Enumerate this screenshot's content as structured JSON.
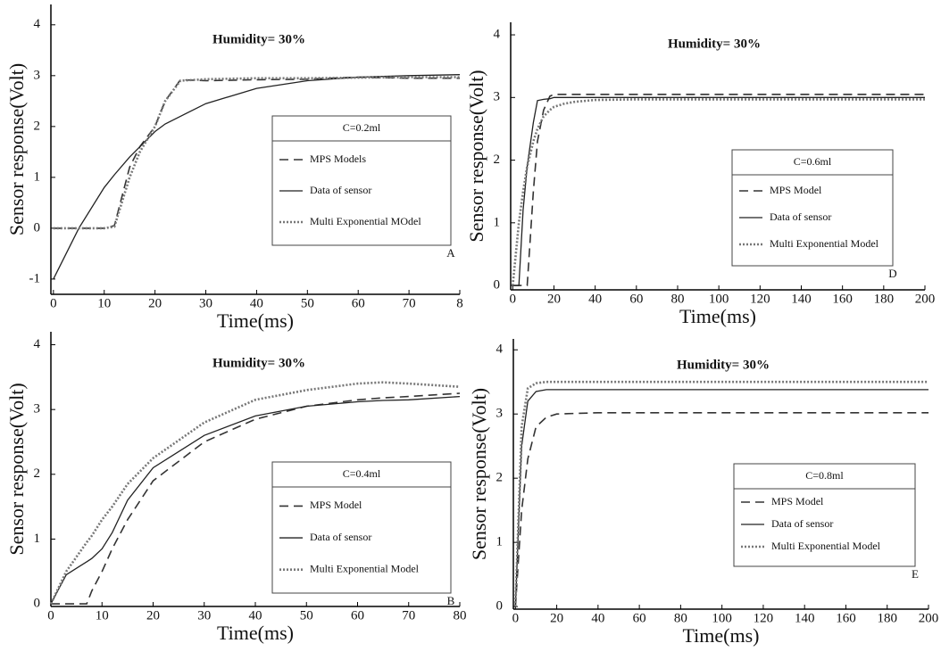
{
  "chart_data": [
    {
      "type": "line",
      "title": "Humidity= 30%",
      "x_label": "Time(ms)",
      "y_label": "Sensor response(Volt)",
      "legend_title": "C=0.2ml",
      "panel_label": "A",
      "x": [
        0,
        5,
        10,
        12,
        15,
        17,
        20,
        22,
        25,
        30,
        40,
        50,
        60,
        70,
        80
      ],
      "series": [
        {
          "name": "MPS Models",
          "color": "#333333",
          "style": "dashed",
          "values": [
            0,
            0,
            0,
            0.05,
            1.2,
            1.6,
            2.0,
            2.5,
            2.92,
            2.9,
            2.92,
            2.93,
            2.97,
            2.95,
            2.95
          ]
        },
        {
          "name": "Data of sensor",
          "color": "#222222",
          "style": "solid",
          "values": [
            -1,
            0,
            0.8,
            1.05,
            1.4,
            1.6,
            1.9,
            2.05,
            2.2,
            2.45,
            2.75,
            2.9,
            2.97,
            3.0,
            3.02
          ]
        },
        {
          "name": "Multi Exponential MOdel",
          "color": "#777777",
          "style": "dotted",
          "values": [
            0,
            0,
            0,
            0.03,
            1.0,
            1.5,
            2.0,
            2.5,
            2.9,
            2.93,
            2.95,
            2.95,
            2.96,
            2.97,
            2.97
          ]
        }
      ],
      "xlim": [
        -0.5,
        80
      ],
      "ylim": [
        -1.3,
        4.4
      ],
      "xticks": [
        0,
        10,
        20,
        30,
        40,
        50,
        60,
        70,
        {
          "value": 80,
          "label": "8"
        }
      ],
      "yticks": [
        -1,
        0,
        1,
        2,
        3,
        4
      ]
    },
    {
      "type": "line",
      "title": "Humidity= 30%",
      "x_label": "Time(ms)",
      "y_label": "Sensor response(Volt)",
      "legend_title": "C=0.6ml",
      "panel_label": "D",
      "x": [
        0,
        3,
        5,
        7,
        10,
        12,
        15,
        18,
        20,
        25,
        30,
        40,
        60,
        100,
        150,
        200
      ],
      "series": [
        {
          "name": "MPS Model",
          "color": "#333333",
          "style": "dashed",
          "values": [
            0,
            0,
            0,
            0,
            1.5,
            2.3,
            2.8,
            3.02,
            3.05,
            3.05,
            3.05,
            3.05,
            3.05,
            3.05,
            3.05,
            3.05
          ]
        },
        {
          "name": "Data of sensor",
          "color": "#222222",
          "style": "solid",
          "values": [
            0,
            0,
            1.2,
            1.9,
            2.6,
            2.95,
            2.97,
            2.98,
            3.0,
            3.0,
            3.0,
            3.0,
            3.0,
            3.0,
            3.0,
            3.0
          ]
        },
        {
          "name": "Multi Exponential Model",
          "color": "#777777",
          "style": "dotted",
          "values": [
            0,
            1.0,
            1.5,
            1.9,
            2.3,
            2.5,
            2.7,
            2.8,
            2.85,
            2.9,
            2.93,
            2.96,
            2.97,
            2.97,
            2.97,
            2.97
          ]
        }
      ],
      "xlim": [
        -1,
        200
      ],
      "ylim": [
        -0.07,
        4.2
      ],
      "xticks": [
        0,
        20,
        40,
        60,
        80,
        100,
        120,
        140,
        160,
        180,
        200
      ],
      "yticks": [
        0,
        1,
        2,
        3,
        4
      ]
    },
    {
      "type": "line",
      "title": "Humidity= 30%",
      "x_label": "Time(ms)",
      "y_label": "Sensor response(Volt)",
      "legend_title": "C=0.4ml",
      "panel_label": "B",
      "x": [
        0,
        3,
        7,
        8,
        10,
        12,
        15,
        20,
        30,
        40,
        50,
        60,
        65,
        70,
        80
      ],
      "series": [
        {
          "name": "MPS Model",
          "color": "#333333",
          "style": "dashed",
          "values": [
            0,
            0,
            0,
            0.2,
            0.5,
            0.85,
            1.3,
            1.9,
            2.5,
            2.85,
            3.05,
            3.15,
            3.18,
            3.2,
            3.25
          ]
        },
        {
          "name": "Data of sensor",
          "color": "#222222",
          "style": "solid",
          "values": [
            0,
            0.45,
            0.65,
            0.7,
            0.85,
            1.1,
            1.6,
            2.1,
            2.6,
            2.9,
            3.05,
            3.12,
            3.14,
            3.15,
            3.2
          ]
        },
        {
          "name": "Multi Exponential Model",
          "color": "#777777",
          "style": "dotted",
          "values": [
            0,
            0.5,
            0.95,
            1.05,
            1.3,
            1.5,
            1.85,
            2.25,
            2.8,
            3.15,
            3.3,
            3.4,
            3.42,
            3.4,
            3.35
          ]
        }
      ],
      "xlim": [
        0,
        80
      ],
      "ylim": [
        -0.04,
        4.2
      ],
      "xticks": [
        0,
        10,
        20,
        30,
        40,
        50,
        60,
        70,
        80
      ],
      "yticks": [
        0,
        1,
        2,
        3,
        4
      ]
    },
    {
      "type": "line",
      "title": "Humidity= 30%",
      "x_label": "Time(ms)",
      "y_label": "Sensor response(Volt)",
      "legend_title": "C=0.8ml",
      "panel_label": "E",
      "x": [
        0,
        3,
        6,
        10,
        15,
        20,
        40,
        100,
        200
      ],
      "series": [
        {
          "name": "MPS Model",
          "color": "#333333",
          "style": "dashed",
          "values": [
            0,
            1.5,
            2.3,
            2.8,
            2.95,
            3.0,
            3.02,
            3.02,
            3.02
          ]
        },
        {
          "name": "Data of sensor",
          "color": "#222222",
          "style": "solid",
          "values": [
            0,
            2.5,
            3.2,
            3.35,
            3.38,
            3.38,
            3.38,
            3.38,
            3.38
          ]
        },
        {
          "name": "Multi Exponential Model",
          "color": "#777777",
          "style": "dotted",
          "values": [
            0,
            2.8,
            3.4,
            3.48,
            3.5,
            3.5,
            3.5,
            3.5,
            3.5
          ]
        }
      ],
      "xlim": [
        -1,
        200
      ],
      "ylim": [
        -0.04,
        4.17
      ],
      "xticks": [
        0,
        20,
        40,
        60,
        80,
        100,
        120,
        140,
        160,
        180,
        200
      ],
      "yticks": [
        0,
        1,
        2,
        3,
        4
      ]
    }
  ]
}
